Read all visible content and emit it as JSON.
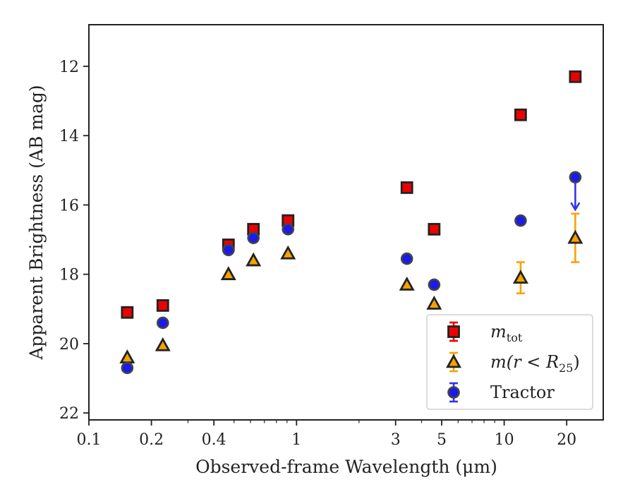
{
  "chart_data": {
    "type": "scatter",
    "xlabel": "Observed-frame Wavelength (μm)",
    "ylabel": "Apparent Brightness (AB mag)",
    "xscale": "log",
    "xlim": [
      0.1,
      30
    ],
    "ylim": [
      22.2,
      10.8
    ],
    "y_inverted": true,
    "x_ticks": [
      0.1,
      0.2,
      0.4,
      1,
      3,
      5,
      10,
      20
    ],
    "x_tick_labels": [
      "0.1",
      "0.2",
      "0.4",
      "1",
      "3",
      "5",
      "10",
      "20"
    ],
    "y_ticks": [
      12,
      14,
      16,
      18,
      20,
      22
    ],
    "y_tick_labels": [
      "12",
      "14",
      "16",
      "18",
      "20",
      "22"
    ],
    "legend_position": "bottom-right",
    "grid": false,
    "series": [
      {
        "name": "m_tot",
        "marker": "square",
        "color": "#ee0000",
        "error_color": "#ee0000",
        "x": [
          0.153,
          0.227,
          0.47,
          0.62,
          0.91,
          3.4,
          4.6,
          12.0,
          22.0
        ],
        "y": [
          19.1,
          18.9,
          17.15,
          16.7,
          16.45,
          15.5,
          16.7,
          13.4,
          12.3
        ],
        "yerr": [
          0,
          0,
          0,
          0,
          0,
          0,
          0,
          0,
          0
        ],
        "upper_limit": [
          false,
          false,
          false,
          false,
          false,
          false,
          false,
          false,
          false
        ]
      },
      {
        "name": "m(r < R25)",
        "marker": "triangle",
        "color": "#f5a300",
        "error_color": "#f5a300",
        "x": [
          0.153,
          0.227,
          0.47,
          0.62,
          0.91,
          3.4,
          4.6,
          12.0,
          22.0
        ],
        "y": [
          20.4,
          20.05,
          18.0,
          17.6,
          17.4,
          18.3,
          18.85,
          18.1,
          16.95
        ],
        "yerr": [
          0,
          0,
          0,
          0,
          0,
          0,
          0,
          0.45,
          0.7
        ],
        "upper_limit": [
          false,
          false,
          false,
          false,
          false,
          false,
          false,
          false,
          false
        ]
      },
      {
        "name": "Tractor",
        "marker": "circle",
        "color": "#1a1aee",
        "error_color": "#3333ee",
        "x": [
          0.153,
          0.227,
          0.47,
          0.62,
          0.91,
          3.4,
          4.6,
          12.0,
          22.0
        ],
        "y": [
          20.7,
          19.4,
          17.3,
          16.95,
          16.7,
          17.55,
          18.3,
          16.45,
          15.2
        ],
        "yerr": [
          0,
          0,
          0,
          0,
          0,
          0,
          0,
          0,
          0
        ],
        "upper_limit": [
          false,
          false,
          false,
          false,
          false,
          false,
          false,
          false,
          true
        ]
      }
    ],
    "legend": [
      {
        "marker": "square",
        "label_main": "m",
        "label_sub": "tot",
        "label_tail": ""
      },
      {
        "marker": "triangle",
        "label_main": "m(r < R",
        "label_sub": "25",
        "label_tail": ")"
      },
      {
        "marker": "circle",
        "label_main": "Tractor",
        "label_sub": "",
        "label_tail": ""
      }
    ]
  }
}
